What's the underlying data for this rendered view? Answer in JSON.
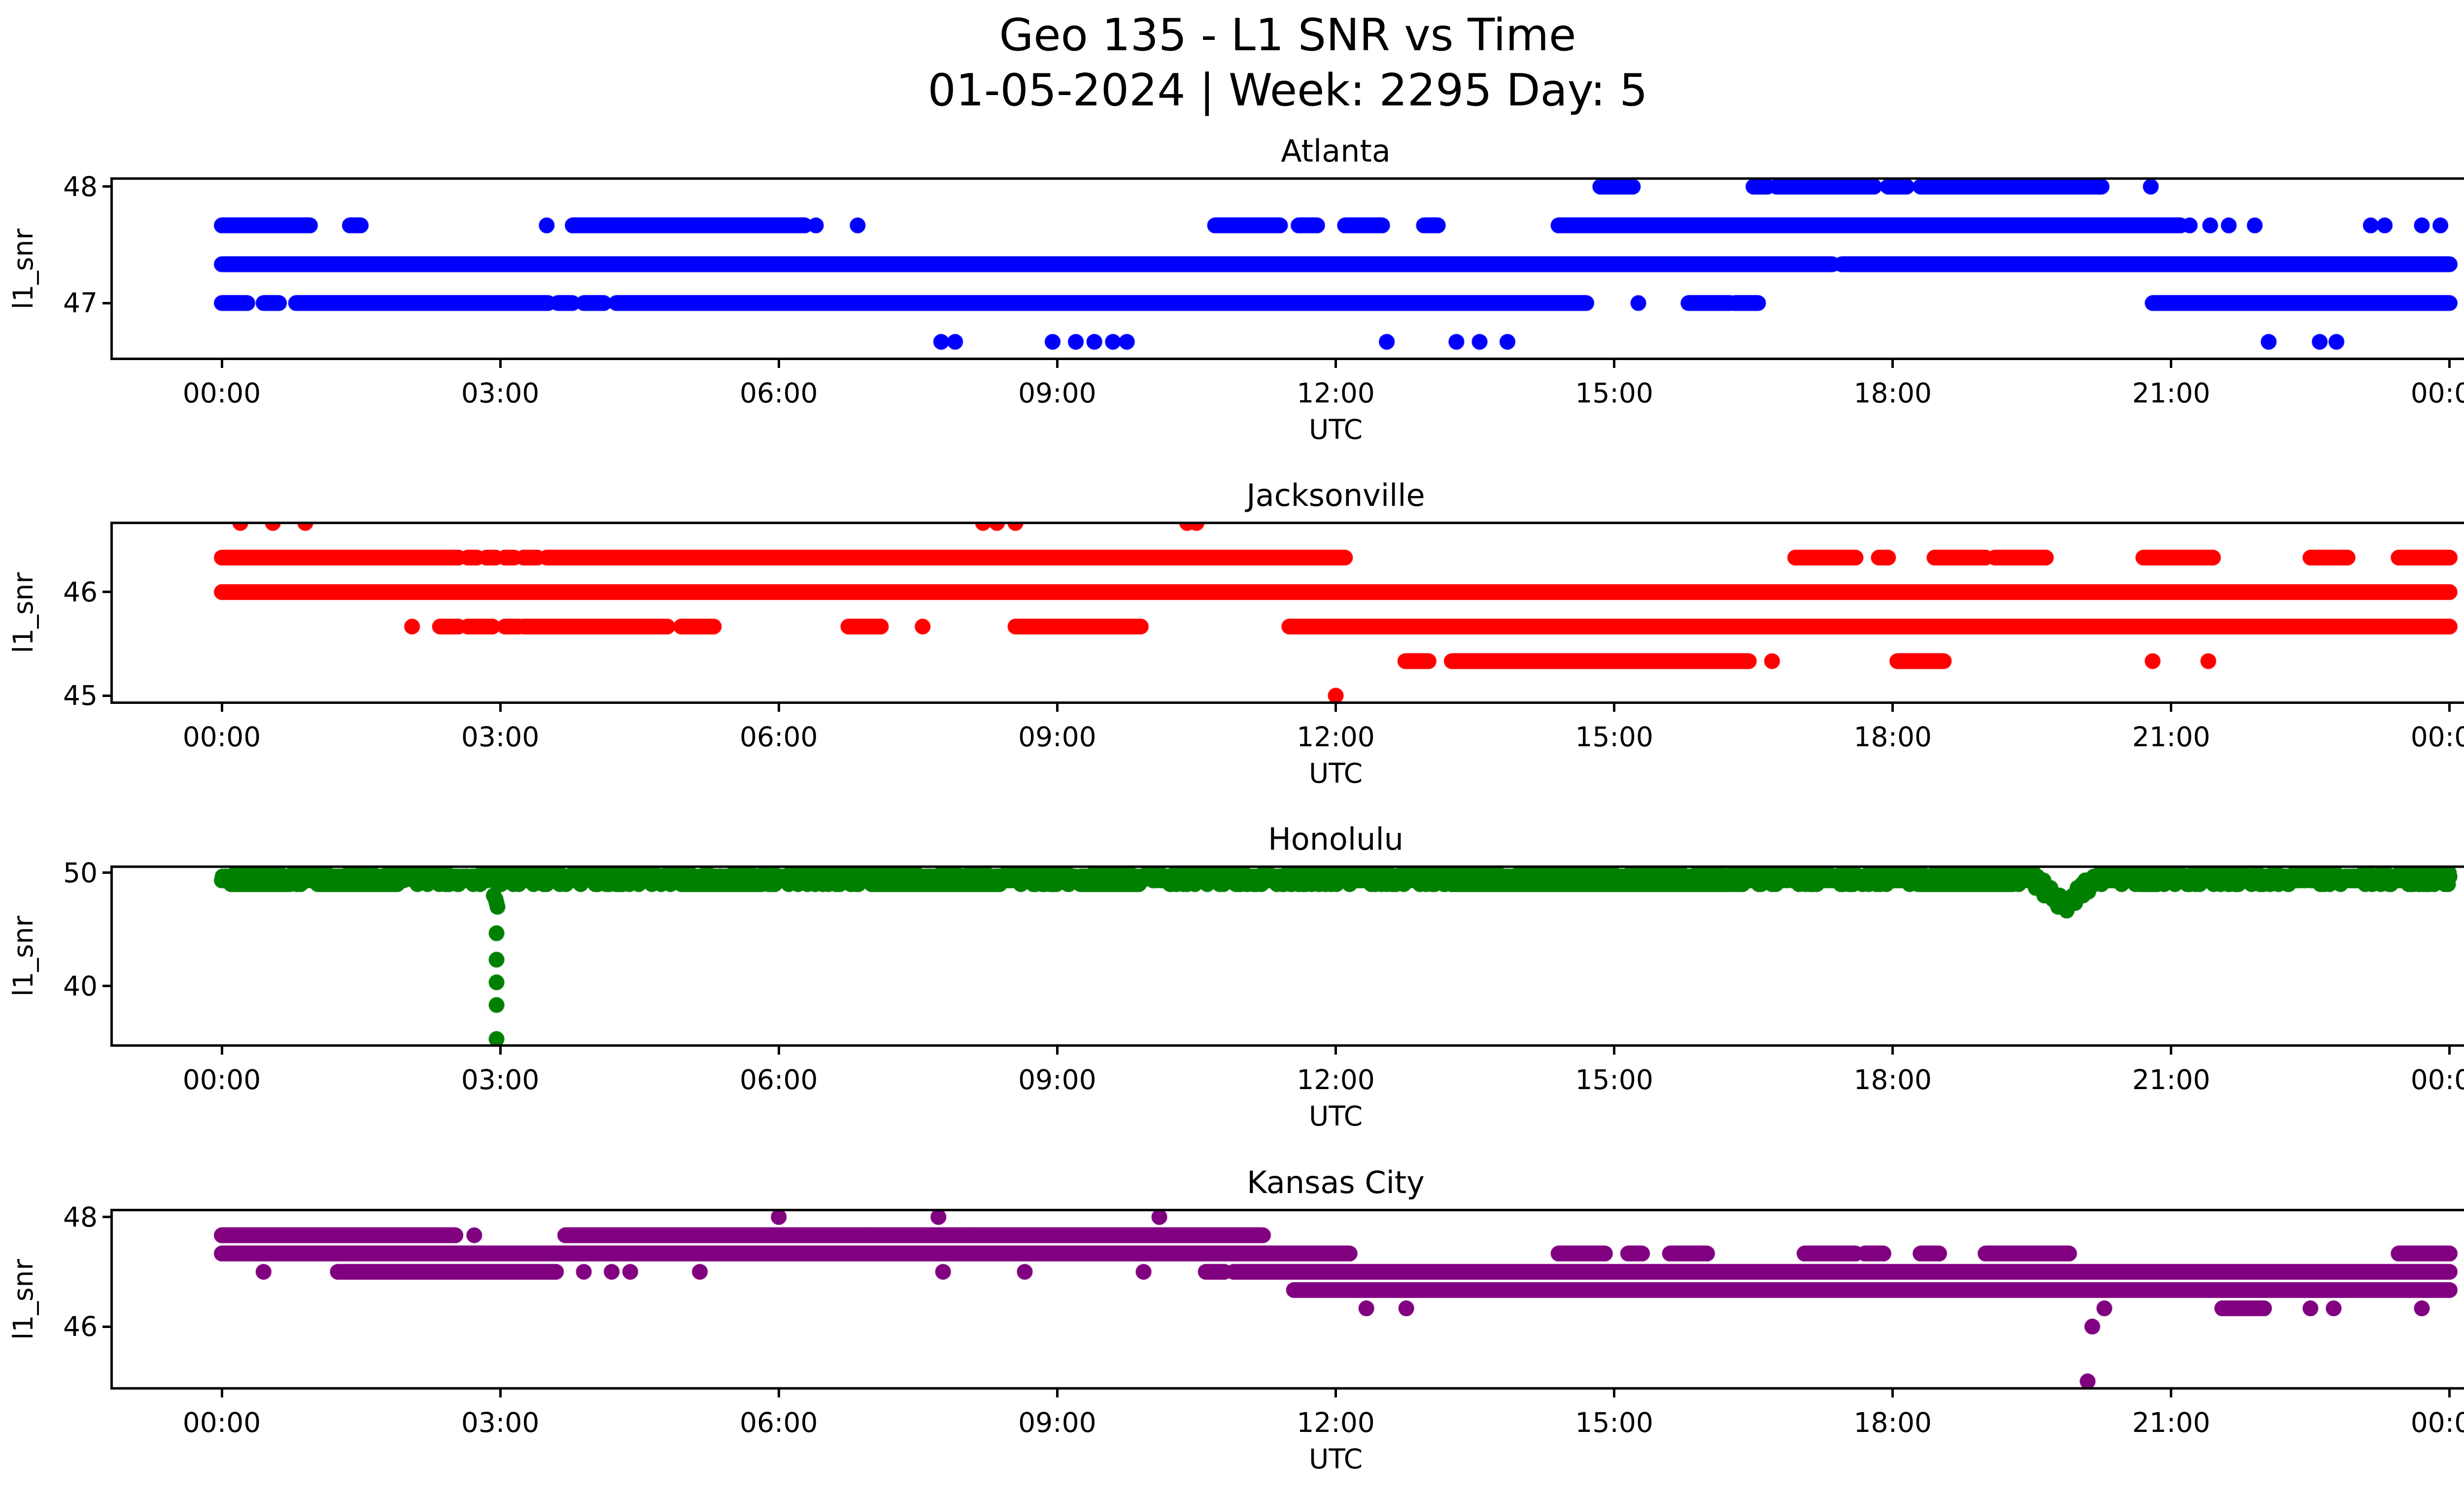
{
  "figure": {
    "title_line1": "Geo 135 - L1 SNR vs Time",
    "title_line2": "01-05-2024 | Week: 2295 Day: 5",
    "background_color": "#ffffff",
    "text_color": "#000000"
  },
  "chart_data": [
    {
      "type": "scatter",
      "title": "Atlanta",
      "color": "#0000ff",
      "xlabel": "UTC",
      "ylabel": "l1_snr",
      "xlim": [
        -1.2,
        25.2
      ],
      "ylim": [
        46.51,
        48.08
      ],
      "grid": false,
      "legend": "none",
      "marker_radius": 16,
      "sample_step_h": 0.008333,
      "x_ticks": {
        "hours": [
          0,
          3,
          6,
          9,
          12,
          15,
          18,
          21,
          24
        ],
        "labels": [
          "00:00",
          "03:00",
          "06:00",
          "09:00",
          "12:00",
          "15:00",
          "18:00",
          "21:00",
          "00:00"
        ]
      },
      "y_ticks": [
        {
          "value": 48,
          "label": "48"
        },
        {
          "value": 47,
          "label": "47"
        }
      ],
      "series": [
        {
          "snr": 48.0,
          "intervals": [
            [
              14.85,
              15.2
            ],
            [
              16.5,
              16.65
            ],
            [
              16.75,
              17.8
            ],
            [
              17.95,
              18.15
            ],
            [
              18.3,
              20.25
            ]
          ],
          "points": [
            20.78
          ]
        },
        {
          "snr": 47.667,
          "intervals": [
            [
              0,
              0.95
            ],
            [
              1.38,
              1.5
            ],
            [
              3.78,
              6.28
            ],
            [
              10.7,
              11.4
            ],
            [
              11.6,
              11.8
            ],
            [
              12.1,
              12.5
            ],
            [
              12.95,
              13.1
            ],
            [
              14.4,
              21.1
            ]
          ],
          "points": [
            3.5,
            6.4,
            6.85,
            21.2,
            21.42,
            21.62,
            21.9,
            23.15,
            23.3,
            23.7,
            23.9
          ]
        },
        {
          "snr": 47.333,
          "intervals": [
            [
              0,
              17.35
            ],
            [
              17.45,
              24
            ]
          ],
          "points": []
        },
        {
          "snr": 47.0,
          "intervals": [
            [
              0,
              0.28
            ],
            [
              0.45,
              0.62
            ],
            [
              0.8,
              3.52
            ],
            [
              3.62,
              3.78
            ],
            [
              3.9,
              4.12
            ],
            [
              4.25,
              14.7
            ],
            [
              15.8,
              16.25
            ],
            [
              16.3,
              16.55
            ],
            [
              20.8,
              24
            ]
          ],
          "points": [
            15.26
          ]
        },
        {
          "snr": 46.667,
          "intervals": [],
          "points": [
            7.75,
            7.9,
            8.95,
            9.2,
            9.4,
            9.6,
            9.75,
            12.55,
            13.3,
            13.55,
            13.85,
            22.05,
            22.6,
            22.78
          ]
        }
      ]
    },
    {
      "type": "scatter",
      "title": "Jacksonville",
      "color": "#ff0000",
      "xlabel": "UTC",
      "ylabel": "l1_snr",
      "xlim": [
        -1.2,
        25.2
      ],
      "ylim": [
        44.92,
        46.68
      ],
      "grid": false,
      "legend": "none",
      "marker_radius": 16,
      "sample_step_h": 0.008333,
      "x_ticks": {
        "hours": [
          0,
          3,
          6,
          9,
          12,
          15,
          18,
          21,
          24
        ],
        "labels": [
          "00:00",
          "03:00",
          "06:00",
          "09:00",
          "12:00",
          "15:00",
          "18:00",
          "21:00",
          "00:00"
        ]
      },
      "y_ticks": [
        {
          "value": 46,
          "label": "46"
        },
        {
          "value": 45,
          "label": "45"
        }
      ],
      "series": [
        {
          "snr": 46.667,
          "intervals": [],
          "points": [
            0.2,
            0.55,
            0.9,
            8.2,
            8.35,
            8.55,
            10.4,
            10.5
          ]
        },
        {
          "snr": 46.333,
          "intervals": [
            [
              0,
              2.55
            ],
            [
              2.65,
              2.75
            ],
            [
              2.85,
              2.95
            ],
            [
              3.05,
              3.15
            ],
            [
              3.25,
              3.4
            ],
            [
              3.5,
              12.1
            ],
            [
              16.95,
              17.6
            ],
            [
              17.85,
              17.95
            ],
            [
              18.45,
              19.0
            ],
            [
              19.1,
              19.65
            ],
            [
              20.7,
              21.45
            ],
            [
              22.5,
              22.9
            ],
            [
              23.45,
              24
            ]
          ],
          "points": []
        },
        {
          "snr": 46.0,
          "intervals": [
            [
              0,
              24
            ]
          ],
          "points": []
        },
        {
          "snr": 45.667,
          "intervals": [
            [
              2.35,
              2.55
            ],
            [
              2.65,
              2.92
            ],
            [
              3.05,
              3.2
            ],
            [
              3.25,
              4.8
            ],
            [
              4.95,
              5.3
            ],
            [
              6.75,
              7.1
            ],
            [
              8.55,
              9.9
            ],
            [
              11.5,
              24
            ]
          ],
          "points": [
            2.05,
            7.55
          ]
        },
        {
          "snr": 45.333,
          "intervals": [
            [
              12.75,
              13.0
            ],
            [
              13.25,
              16.45
            ],
            [
              18.05,
              18.55
            ]
          ],
          "points": [
            16.7,
            20.8,
            21.4
          ]
        },
        {
          "snr": 45.0,
          "intervals": [],
          "points": [
            12.0
          ]
        }
      ]
    },
    {
      "type": "scatter",
      "title": "Honolulu",
      "color": "#008000",
      "xlabel": "UTC",
      "ylabel": "l1_snr",
      "xlim": [
        -1.2,
        25.2
      ],
      "ylim": [
        34.65,
        50.65
      ],
      "grid": false,
      "legend": "none",
      "marker_radius": 16,
      "sample_step_h": 0.008333,
      "x_ticks": {
        "hours": [
          0,
          3,
          6,
          9,
          12,
          15,
          18,
          21,
          24
        ],
        "labels": [
          "00:00",
          "03:00",
          "06:00",
          "09:00",
          "12:00",
          "15:00",
          "18:00",
          "21:00",
          "00:00"
        ]
      },
      "y_ticks": [
        {
          "value": 50,
          "label": "50"
        },
        {
          "value": 40,
          "label": "40"
        }
      ],
      "band": {
        "h_range": [
          0,
          24
        ],
        "base_snr": 49.62,
        "quantum": 0.3333,
        "max_snr": 50.0,
        "jitter_weights": [
          [
            0.3333,
            0.15
          ],
          [
            0.0,
            0.45
          ],
          [
            -0.3333,
            0.3
          ],
          [
            -0.6667,
            0.1
          ]
        ],
        "dip": {
          "center_h": 19.85,
          "half_width_h": 0.33,
          "depth_snr": 2.4
        },
        "seed": 42
      },
      "series": [
        {
          "snr": 49.0,
          "step": 0.03,
          "intervals": [
            [
              0.1,
              0.7
            ],
            [
              1.05,
              1.9
            ],
            [
              4.95,
              5.8
            ],
            [
              7.0,
              8.4
            ],
            [
              9.25,
              9.9
            ],
            [
              13.25,
              16.25
            ],
            [
              18.3,
              19.3
            ],
            [
              20.7,
              20.85
            ]
          ],
          "points": []
        },
        {
          "snr": 50.333,
          "intervals": [],
          "points": [
            2.3,
            2.4
          ]
        },
        {
          "snr": 48.0,
          "intervals": [],
          "points": [
            2.93
          ]
        },
        {
          "snr": 47.667,
          "intervals": [],
          "points": [
            2.95
          ]
        },
        {
          "snr": 47.333,
          "intervals": [],
          "points": [
            2.96
          ]
        },
        {
          "snr": 47.0,
          "intervals": [],
          "points": [
            2.97
          ]
        },
        {
          "snr": 44.667,
          "intervals": [],
          "points": [
            2.96
          ]
        },
        {
          "snr": 42.333,
          "intervals": [],
          "points": [
            2.96
          ]
        },
        {
          "snr": 40.333,
          "intervals": [],
          "points": [
            2.96
          ]
        },
        {
          "snr": 38.333,
          "intervals": [],
          "points": [
            2.96
          ]
        },
        {
          "snr": 35.333,
          "intervals": [],
          "points": [
            2.96
          ]
        }
      ]
    },
    {
      "type": "scatter",
      "title": "Kansas City",
      "color": "#800080",
      "xlabel": "UTC",
      "ylabel": "l1_snr",
      "xlim": [
        -1.2,
        25.2
      ],
      "ylim": [
        44.85,
        48.15
      ],
      "grid": false,
      "legend": "none",
      "marker_radius": 16,
      "sample_step_h": 0.008333,
      "x_ticks": {
        "hours": [
          0,
          3,
          6,
          9,
          12,
          15,
          18,
          21,
          24
        ],
        "labels": [
          "00:00",
          "03:00",
          "06:00",
          "09:00",
          "12:00",
          "15:00",
          "18:00",
          "21:00",
          "00:00"
        ]
      },
      "y_ticks": [
        {
          "value": 48,
          "label": "48"
        },
        {
          "value": 46,
          "label": "46"
        }
      ],
      "series": [
        {
          "snr": 48.0,
          "intervals": [],
          "points": [
            6.0,
            7.72,
            10.1
          ]
        },
        {
          "snr": 47.667,
          "intervals": [
            [
              0,
              2.52
            ],
            [
              3.7,
              11.22
            ]
          ],
          "points": [
            2.72
          ]
        },
        {
          "snr": 47.333,
          "intervals": [
            [
              0,
              12.15
            ],
            [
              14.4,
              14.9
            ],
            [
              15.15,
              15.3
            ],
            [
              15.6,
              16.0
            ],
            [
              17.05,
              17.6
            ],
            [
              17.7,
              17.9
            ],
            [
              18.3,
              18.5
            ],
            [
              19.0,
              19.9
            ],
            [
              23.45,
              24
            ]
          ],
          "points": []
        },
        {
          "snr": 47.0,
          "intervals": [
            [
              1.25,
              3.6
            ],
            [
              10.6,
              10.8
            ],
            [
              10.9,
              24
            ]
          ],
          "points": [
            0.45,
            3.9,
            4.2,
            4.4,
            5.15,
            7.77,
            8.65,
            9.93
          ]
        },
        {
          "snr": 46.667,
          "intervals": [
            [
              11.55,
              24
            ]
          ],
          "points": []
        },
        {
          "snr": 46.333,
          "intervals": [
            [
              21.55,
              22.0
            ]
          ],
          "points": [
            12.33,
            12.76,
            20.28,
            22.5,
            22.75,
            23.7
          ]
        },
        {
          "snr": 46.0,
          "intervals": [],
          "points": [
            20.15
          ]
        },
        {
          "snr": 45.0,
          "intervals": [],
          "points": [
            20.1
          ]
        }
      ]
    }
  ]
}
